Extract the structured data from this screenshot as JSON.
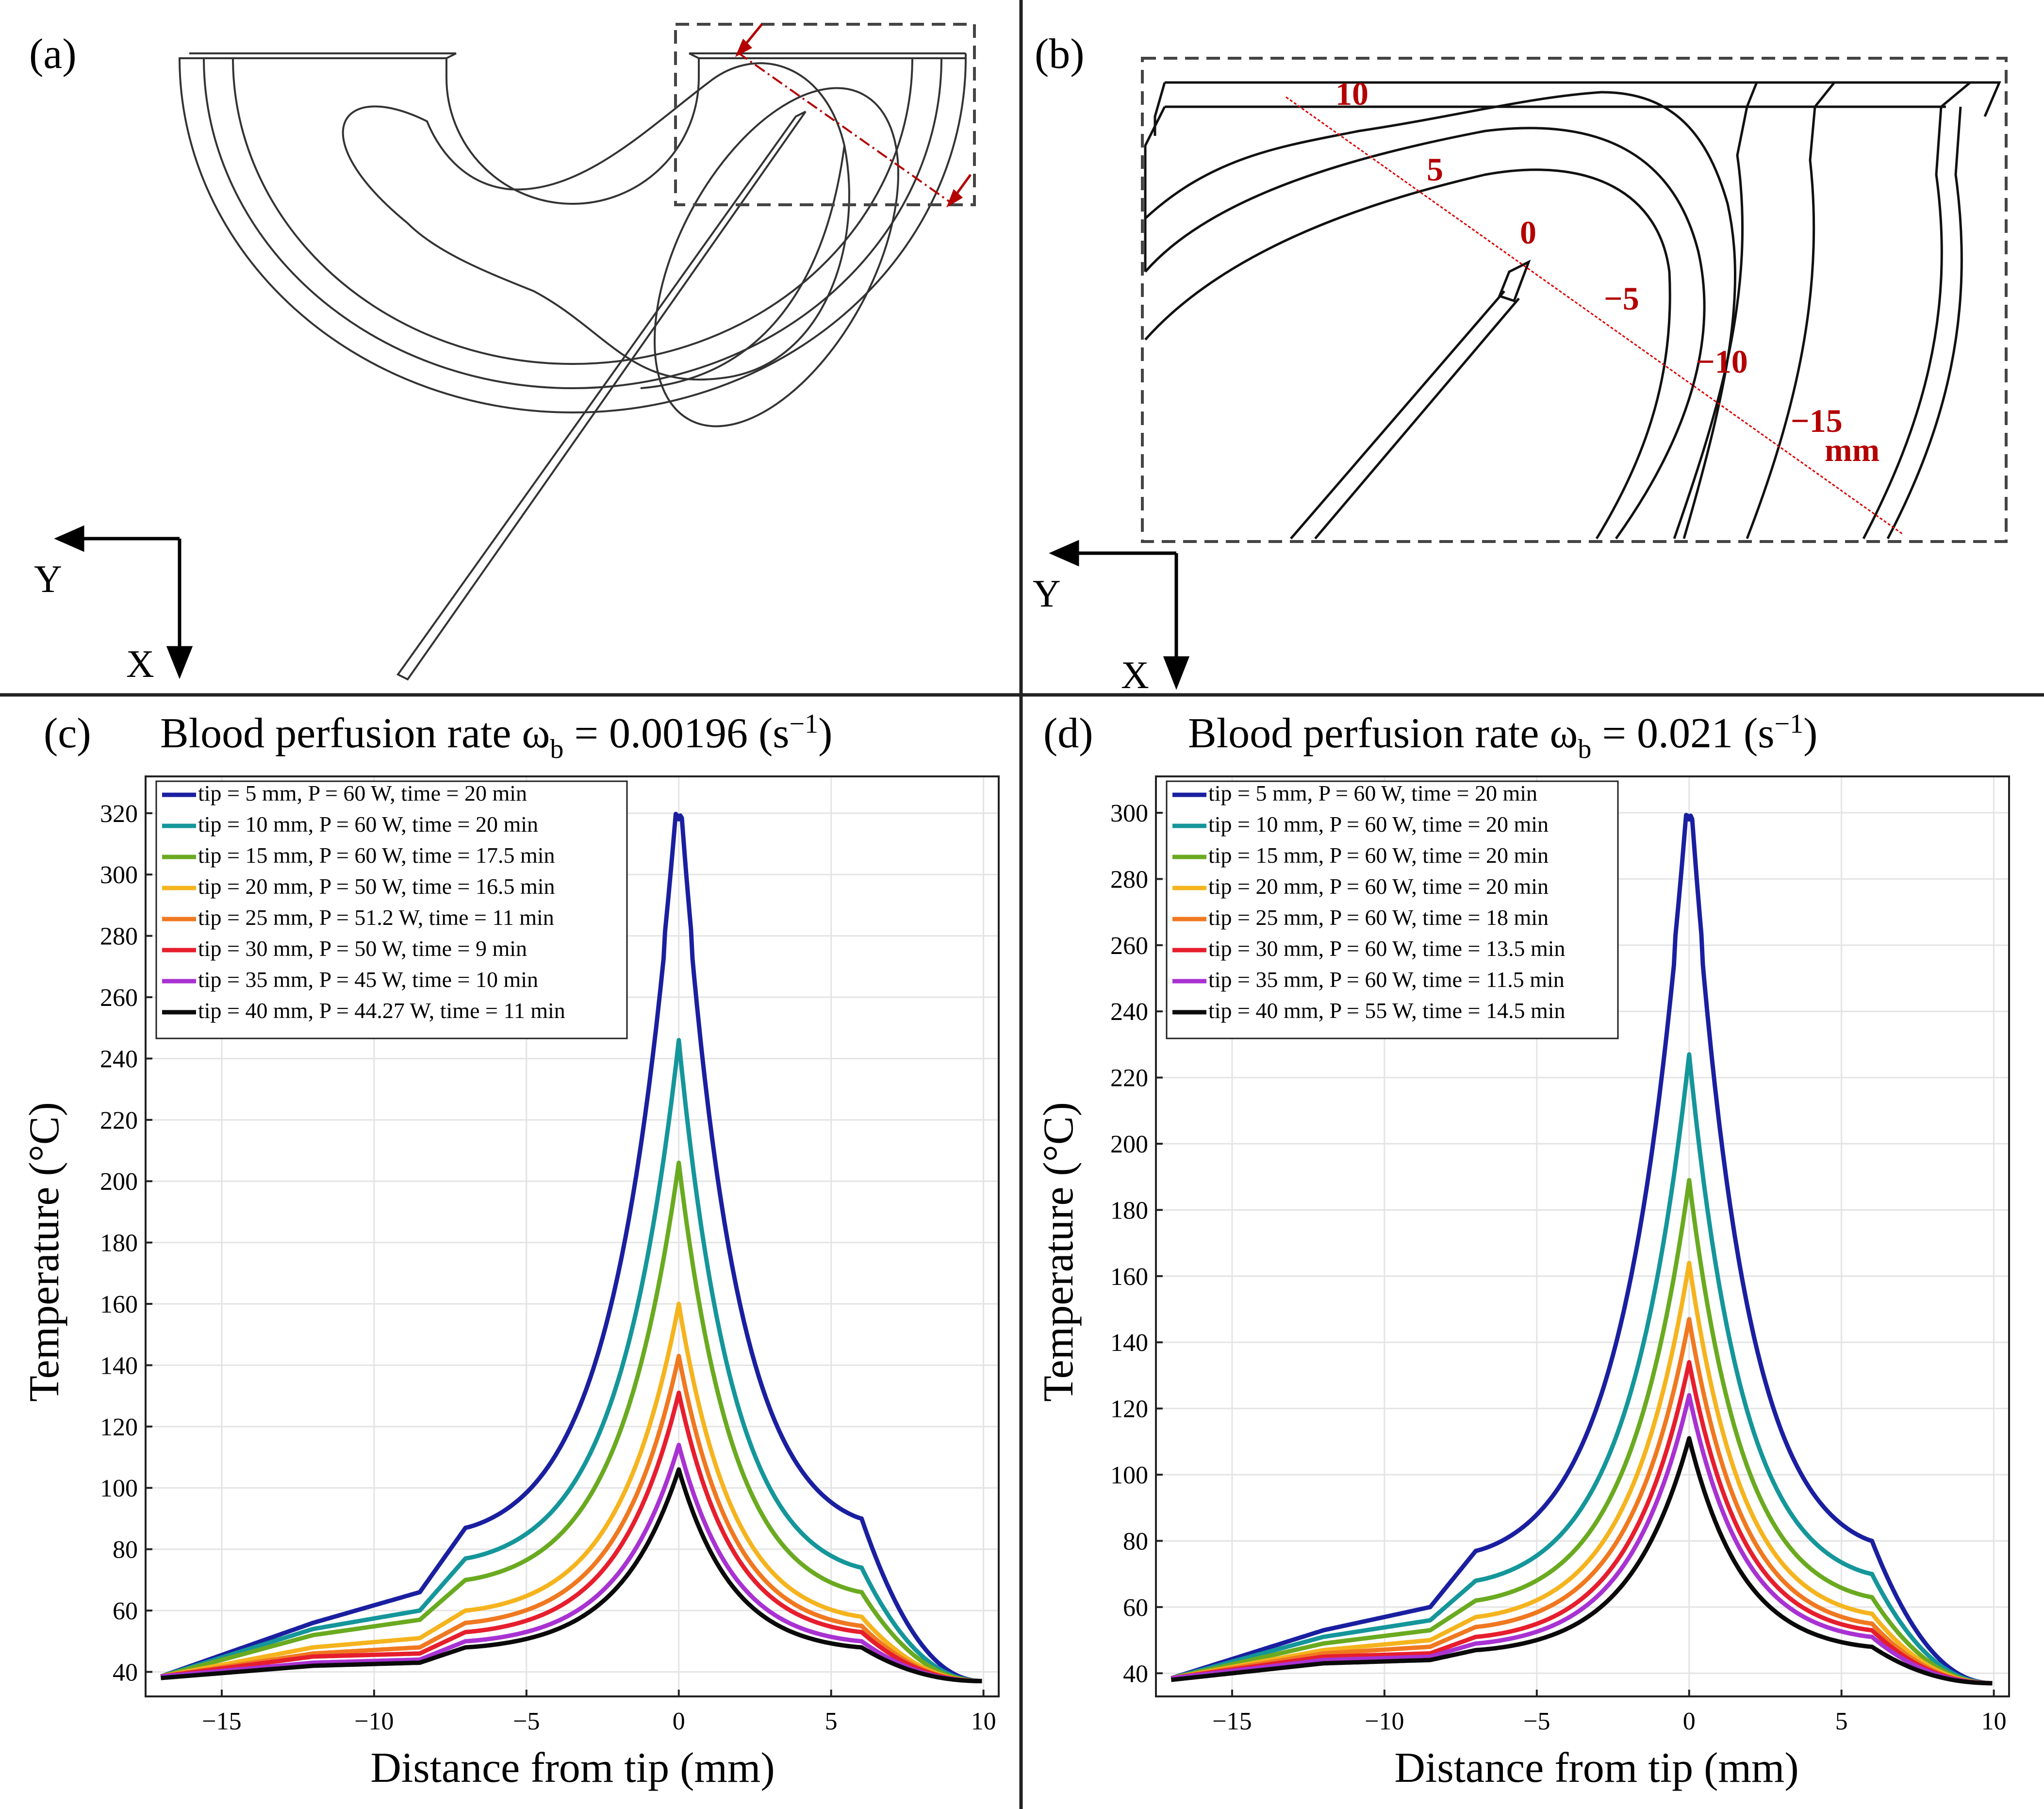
{
  "panel_labels": {
    "a": "(a)",
    "b": "(b)",
    "c": "(c)",
    "d": "(d)"
  },
  "axis_letters": {
    "x": "X",
    "y": "Y"
  },
  "detail_annotations": {
    "ticks": [
      "10",
      "5",
      "0",
      "−5",
      "−10",
      "−15"
    ],
    "unit": "mm"
  },
  "colors": {
    "series": [
      "#1a1fa0",
      "#14969a",
      "#6aaa20",
      "#f5b41e",
      "#f07820",
      "#e61e2d",
      "#a832d2",
      "#0a0a0a"
    ],
    "annotation": "#b40000",
    "grid": "#e4e4e4"
  },
  "chart_data": [
    {
      "type": "line",
      "panel": "c",
      "title_prefix": "Blood perfusion rate ω",
      "title_sub": "b",
      "title_value": " = 0.00196 (s",
      "title_sup": "−1",
      "title_suffix": ")",
      "xlabel": "Distance from tip (mm)",
      "ylabel": "Temperature (°C)",
      "xlim": [
        -17.5,
        10.5
      ],
      "ylim": [
        32,
        332
      ],
      "xticks": [
        -15,
        -10,
        -5,
        0,
        5,
        10
      ],
      "yticks": [
        40,
        60,
        80,
        100,
        120,
        140,
        160,
        180,
        200,
        220,
        240,
        260,
        280,
        300,
        320
      ],
      "x_range": [
        -17,
        10
      ],
      "series": [
        {
          "name": "tip = 5 mm, P = 60 W, time = 20 min",
          "peak": 328,
          "dip": 318,
          "vn17": 38.5,
          "vn12": 56,
          "vn8": 66,
          "vn7": 87,
          "v6": 90,
          "v10": 37
        },
        {
          "name": "tip = 10 mm, P = 60 W, time = 20 min",
          "peak": 246,
          "dip": 0,
          "vn17": 38.5,
          "vn12": 54,
          "vn8": 60,
          "vn7": 77,
          "v6": 74,
          "v10": 37
        },
        {
          "name": "tip = 15 mm, P = 60 W, time = 17.5 min",
          "peak": 206,
          "dip": 0,
          "vn17": 38.5,
          "vn12": 52,
          "vn8": 57,
          "vn7": 70,
          "v6": 66,
          "v10": 37
        },
        {
          "name": "tip = 20 mm, P = 50 W, time = 16.5 min",
          "peak": 160,
          "dip": 0,
          "vn17": 38.5,
          "vn12": 48,
          "vn8": 51,
          "vn7": 60,
          "v6": 58,
          "v10": 37
        },
        {
          "name": "tip = 25 mm, P = 51.2 W, time = 11 min",
          "peak": 143,
          "dip": 0,
          "vn17": 38.5,
          "vn12": 46,
          "vn8": 48,
          "vn7": 56,
          "v6": 55,
          "v10": 37
        },
        {
          "name": "tip = 30 mm, P = 50 W, time = 9 min",
          "peak": 131,
          "dip": 0,
          "vn17": 38.5,
          "vn12": 45,
          "vn8": 46,
          "vn7": 53,
          "v6": 53,
          "v10": 37
        },
        {
          "name": "tip = 35 mm, P = 45 W, time = 10 min",
          "peak": 114,
          "dip": 0,
          "vn17": 38.5,
          "vn12": 43,
          "vn8": 44,
          "vn7": 50,
          "v6": 50,
          "v10": 37
        },
        {
          "name": "tip = 40 mm, P = 44.27 W, time = 11 min",
          "peak": 106,
          "dip": 0,
          "vn17": 38,
          "vn12": 42,
          "vn8": 43,
          "vn7": 48,
          "v6": 48,
          "v10": 37
        }
      ]
    },
    {
      "type": "line",
      "panel": "d",
      "title_prefix": "Blood perfusion rate ω",
      "title_sub": "b",
      "title_value": " = 0.021 (s",
      "title_sup": "−1",
      "title_suffix": ")",
      "xlabel": "Distance from tip (mm)",
      "ylabel": "Temperature (°C)",
      "xlim": [
        -17.5,
        10.5
      ],
      "ylim": [
        33,
        311
      ],
      "xticks": [
        -15,
        -10,
        -5,
        0,
        5,
        10
      ],
      "yticks": [
        40,
        60,
        80,
        100,
        120,
        140,
        160,
        180,
        200,
        220,
        240,
        260,
        280,
        300
      ],
      "x_range": [
        -17,
        10
      ],
      "series": [
        {
          "name": "tip = 5 mm, P = 60 W, time = 20 min",
          "peak": 307,
          "dip": 298,
          "vn17": 38.5,
          "vn12": 53,
          "vn8": 60,
          "vn7": 77,
          "v6": 80,
          "v10": 37
        },
        {
          "name": "tip = 10 mm, P = 60 W, time = 20 min",
          "peak": 227,
          "dip": 0,
          "vn17": 38.5,
          "vn12": 51,
          "vn8": 56,
          "vn7": 68,
          "v6": 70,
          "v10": 37
        },
        {
          "name": "tip = 15 mm, P = 60 W, time = 20 min",
          "peak": 189,
          "dip": 0,
          "vn17": 38.5,
          "vn12": 49,
          "vn8": 53,
          "vn7": 62,
          "v6": 63,
          "v10": 37
        },
        {
          "name": "tip = 20 mm, P = 60 W, time = 20 min",
          "peak": 164,
          "dip": 0,
          "vn17": 38.5,
          "vn12": 47,
          "vn8": 50,
          "vn7": 57,
          "v6": 58,
          "v10": 37
        },
        {
          "name": "tip = 25 mm, P = 60 W, time = 18 min",
          "peak": 147,
          "dip": 0,
          "vn17": 38.5,
          "vn12": 46,
          "vn8": 48,
          "vn7": 54,
          "v6": 55,
          "v10": 37
        },
        {
          "name": "tip = 30 mm, P = 60 W, time = 13.5 min",
          "peak": 134,
          "dip": 0,
          "vn17": 38.5,
          "vn12": 45,
          "vn8": 46,
          "vn7": 51,
          "v6": 53,
          "v10": 37
        },
        {
          "name": "tip = 35 mm, P = 60 W, time = 11.5 min",
          "peak": 124,
          "dip": 0,
          "vn17": 38.5,
          "vn12": 44,
          "vn8": 45,
          "vn7": 49,
          "v6": 51,
          "v10": 37
        },
        {
          "name": "tip = 40 mm, P = 55 W, time = 14.5 min",
          "peak": 111,
          "dip": 0,
          "vn17": 38,
          "vn12": 43,
          "vn8": 44,
          "vn7": 47,
          "v6": 48,
          "v10": 37
        }
      ]
    }
  ]
}
